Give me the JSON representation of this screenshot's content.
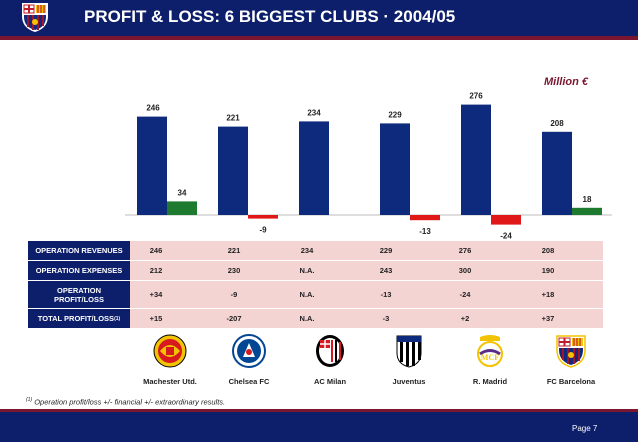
{
  "header": {
    "title": "PROFIT & LOSS: 6 BIGGEST CLUBS · 2004/05"
  },
  "chart_data": {
    "type": "bar",
    "unit_label": "Million €",
    "categories": [
      "Machester Utd.",
      "Chelsea FC",
      "AC Milan",
      "Juventus",
      "R. Madrid",
      "FC Barcelona"
    ],
    "series": [
      {
        "values": [
          246,
          221,
          234,
          229,
          276,
          208
        ],
        "color": "#0d2a7c"
      },
      {
        "values": [
          34,
          -9,
          null,
          -13,
          -24,
          18
        ],
        "labels": [
          "34",
          "-9",
          "",
          "-13",
          "-24",
          "18"
        ]
      }
    ],
    "positive_color": "#1d7a2e",
    "negative_color": "#e01818"
  },
  "table": {
    "rows": [
      {
        "label": "OPERATION REVENUES",
        "values": [
          "246",
          "221",
          "234",
          "229",
          "276",
          "208"
        ]
      },
      {
        "label": "OPERATION EXPENSES",
        "values": [
          "212",
          "230",
          "N.A.",
          "243",
          "300",
          "190"
        ]
      },
      {
        "label": "OPERATION PROFIT/LOSS",
        "values": [
          "+34",
          "-9",
          "N.A.",
          "-13",
          "-24",
          "+18"
        ]
      },
      {
        "label": "TOTAL PROFIT/LOSS",
        "label_sup": "(1)",
        "values": [
          "+15",
          "-207",
          "N.A.",
          "-3",
          "+2",
          "+37"
        ]
      }
    ]
  },
  "clubs": [
    {
      "name": "Machester Utd.",
      "icon": "manchester-united-crest"
    },
    {
      "name": "Chelsea FC",
      "icon": "chelsea-crest"
    },
    {
      "name": "AC Milan",
      "icon": "ac-milan-crest"
    },
    {
      "name": "Juventus",
      "icon": "juventus-crest"
    },
    {
      "name": "R. Madrid",
      "icon": "real-madrid-crest"
    },
    {
      "name": "FC Barcelona",
      "icon": "fc-barcelona-crest"
    }
  ],
  "footnote": {
    "marker": "(1)",
    "text": "Operation profit/loss +/- financial +/- extraordinary results."
  },
  "footer": {
    "page_label": "Page  7"
  }
}
